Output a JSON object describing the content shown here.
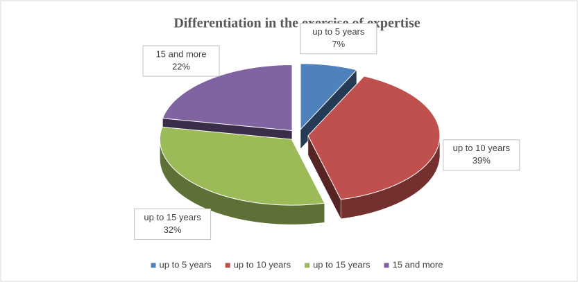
{
  "chart_data": {
    "type": "pie",
    "title": "Differentiation in the exercise of expertise",
    "categories": [
      "up to 5 years",
      "up to 10 years",
      "up to 15 years",
      "15 and more"
    ],
    "values": [
      7,
      39,
      32,
      22
    ],
    "value_labels": [
      "7%",
      "39%",
      "32%",
      "22%"
    ],
    "colors": [
      "#4f81bd",
      "#c0504d",
      "#9bbb59",
      "#8064a2"
    ],
    "legend": "bottom"
  }
}
